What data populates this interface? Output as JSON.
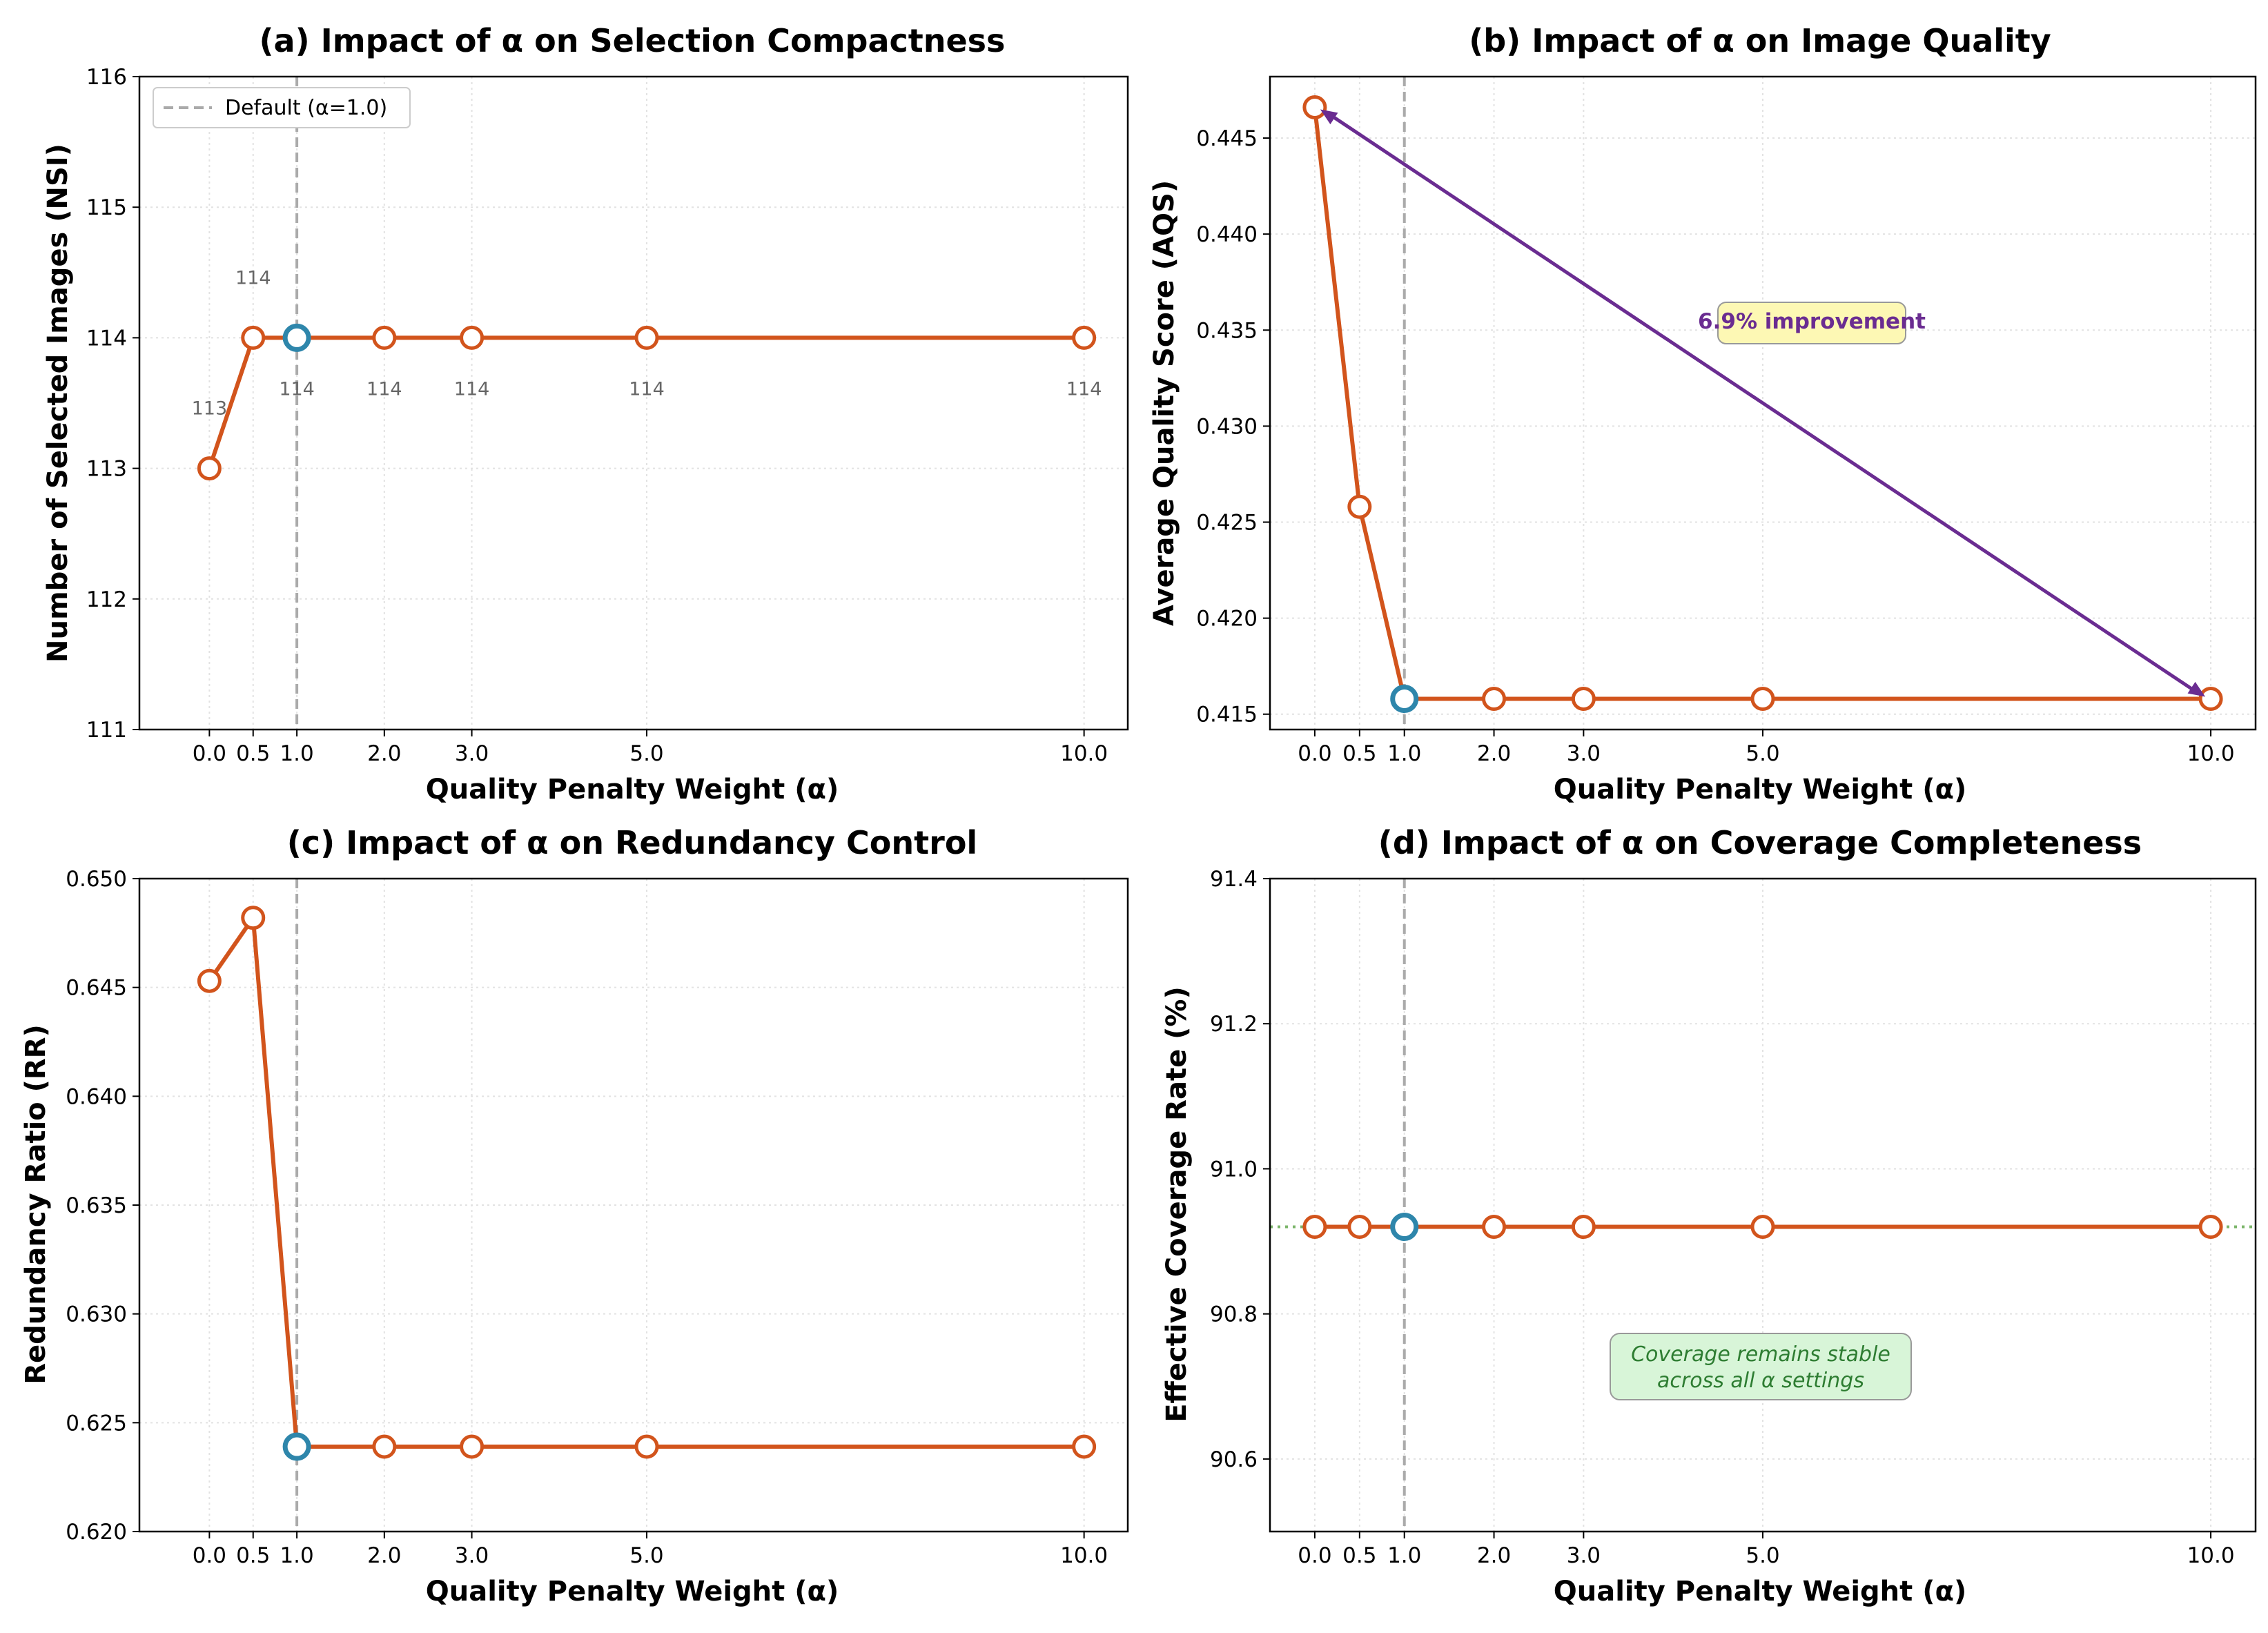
{
  "colors": {
    "line": "#d2541c",
    "default_marker": "#2e86ab",
    "default_line": "#aaaaaa",
    "grid": "#e2e2e2",
    "arrow": "#6a2c91",
    "annotation_b_fill": "#fdf8b4",
    "annotation_d_fill": "#d8f5d8",
    "coverage_ref_line": "#7bb56a"
  },
  "chart_data": [
    {
      "id": "a",
      "type": "line",
      "title": "(a) Impact of α on Selection Compactness",
      "xlabel": "Quality Penalty Weight (α)",
      "ylabel": "Number of Selected Images (NSI)",
      "x": [
        0.0,
        0.5,
        1.0,
        2.0,
        3.0,
        5.0,
        10.0
      ],
      "x_tick_labels": [
        "0.0",
        "0.5",
        "1.0",
        "2.0",
        "3.0",
        "5.0",
        "10.0"
      ],
      "values": [
        113,
        114,
        114,
        114,
        114,
        114,
        114
      ],
      "data_labels": [
        "113",
        "114",
        "114",
        "114",
        "114",
        "114",
        "114"
      ],
      "ylim": [
        111,
        116
      ],
      "y_ticks": [
        111,
        112,
        113,
        114,
        115,
        116
      ],
      "y_tick_labels": [
        "111",
        "112",
        "113",
        "114",
        "115",
        "116"
      ],
      "xlim": [
        -0.8,
        10.5
      ],
      "default_alpha": 1.0,
      "legend": "Default (α=1.0)",
      "legend_position": "top-left"
    },
    {
      "id": "b",
      "type": "line",
      "title": "(b) Impact of α on Image Quality",
      "xlabel": "Quality Penalty Weight (α)",
      "ylabel": "Average Quality Score (AQS)",
      "x": [
        0.0,
        0.5,
        1.0,
        2.0,
        3.0,
        5.0,
        10.0
      ],
      "x_tick_labels": [
        "0.0",
        "0.5",
        "1.0",
        "2.0",
        "3.0",
        "5.0",
        "10.0"
      ],
      "values": [
        0.4466,
        0.4258,
        0.4158,
        0.4158,
        0.4158,
        0.4158,
        0.4158
      ],
      "ylim": [
        0.4142,
        0.4482
      ],
      "y_ticks": [
        0.415,
        0.42,
        0.425,
        0.43,
        0.435,
        0.44,
        0.445
      ],
      "y_tick_labels": [
        "0.415",
        "0.420",
        "0.425",
        "0.430",
        "0.435",
        "0.440",
        "0.445"
      ],
      "xlim": [
        -0.5,
        10.5
      ],
      "default_alpha": 1.0,
      "annotation": "6.9% improvement",
      "arrow": {
        "from": [
          10.0,
          0.4158
        ],
        "to": [
          0.0,
          0.4466
        ]
      }
    },
    {
      "id": "c",
      "type": "line",
      "title": "(c) Impact of α on Redundancy Control",
      "xlabel": "Quality Penalty Weight (α)",
      "ylabel": "Redundancy Ratio (RR)",
      "x": [
        0.0,
        0.5,
        1.0,
        2.0,
        3.0,
        5.0,
        10.0
      ],
      "x_tick_labels": [
        "0.0",
        "0.5",
        "1.0",
        "2.0",
        "3.0",
        "5.0",
        "10.0"
      ],
      "values": [
        0.6453,
        0.6482,
        0.6239,
        0.6239,
        0.6239,
        0.6239,
        0.6239
      ],
      "ylim": [
        0.62,
        0.65
      ],
      "y_ticks": [
        0.62,
        0.625,
        0.63,
        0.635,
        0.64,
        0.645,
        0.65
      ],
      "y_tick_labels": [
        "0.620",
        "0.625",
        "0.630",
        "0.635",
        "0.640",
        "0.645",
        "0.650"
      ],
      "xlim": [
        -0.8,
        10.5
      ],
      "default_alpha": 1.0
    },
    {
      "id": "d",
      "type": "line",
      "title": "(d) Impact of α on Coverage Completeness",
      "xlabel": "Quality Penalty Weight (α)",
      "ylabel": "Effective Coverage Rate (%)",
      "x": [
        0.0,
        0.5,
        1.0,
        2.0,
        3.0,
        5.0,
        10.0
      ],
      "x_tick_labels": [
        "0.0",
        "0.5",
        "1.0",
        "2.0",
        "3.0",
        "5.0",
        "10.0"
      ],
      "values": [
        90.92,
        90.92,
        90.92,
        90.92,
        90.92,
        90.92,
        90.92
      ],
      "ylim": [
        90.5,
        91.4
      ],
      "y_ticks": [
        90.6,
        90.8,
        91.0,
        91.2,
        91.4
      ],
      "y_tick_labels": [
        "90.6",
        "90.8",
        "91.0",
        "91.2",
        "91.4"
      ],
      "xlim": [
        -0.5,
        10.5
      ],
      "default_alpha": 1.0,
      "reference_value": 90.92,
      "annotation_lines": [
        "Coverage remains stable",
        "across all α settings"
      ]
    }
  ]
}
